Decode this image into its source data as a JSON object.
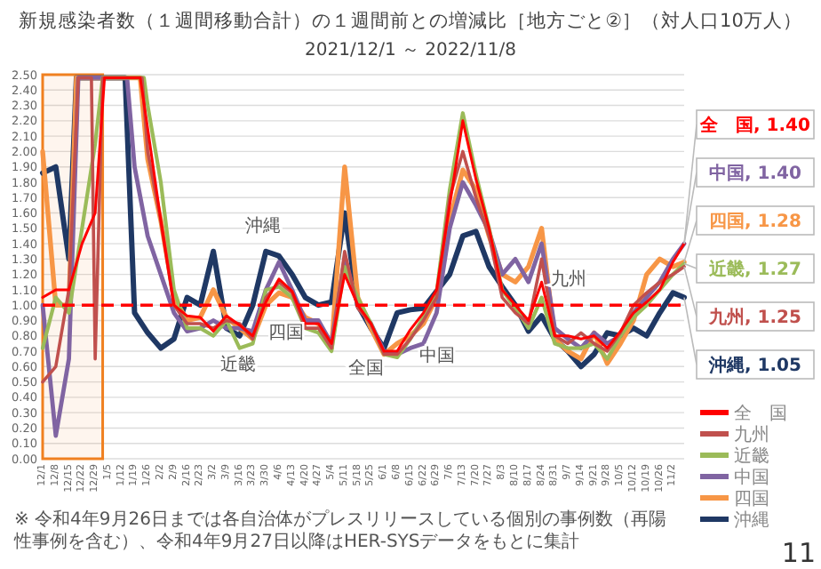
{
  "chart_data": {
    "type": "line",
    "title": "新規感染者数（１週間移動合計）の１週間前との増減比［地方ごと②］（対人口10万人）",
    "subtitle": "2021/12/1 ～ 2022/11/8",
    "xlim": [
      "2021-12-01",
      "2022-11-08"
    ],
    "ylim": [
      0,
      2.5
    ],
    "xticks": [
      {
        "value": "2021-12-01",
        "label": "12/1"
      },
      {
        "value": "2021-12-08",
        "label": "12/8"
      },
      {
        "value": "2021-12-15",
        "label": "12/15"
      },
      {
        "value": "2021-12-22",
        "label": "12/22"
      },
      {
        "value": "2021-12-29",
        "label": "12/29"
      },
      {
        "value": "2022-01-05",
        "label": "1/5"
      },
      {
        "value": "2022-01-12",
        "label": "1/12"
      },
      {
        "value": "2022-01-19",
        "label": "1/19"
      },
      {
        "value": "2022-01-26",
        "label": "1/26"
      },
      {
        "value": "2022-02-02",
        "label": "2/2"
      },
      {
        "value": "2022-02-09",
        "label": "2/9"
      },
      {
        "value": "2022-02-16",
        "label": "2/16"
      },
      {
        "value": "2022-02-23",
        "label": "2/23"
      },
      {
        "value": "2022-03-02",
        "label": "3/2"
      },
      {
        "value": "2022-03-09",
        "label": "3/9"
      },
      {
        "value": "2022-03-16",
        "label": "3/16"
      },
      {
        "value": "2022-03-23",
        "label": "3/23"
      },
      {
        "value": "2022-03-30",
        "label": "3/30"
      },
      {
        "value": "2022-04-06",
        "label": "4/6"
      },
      {
        "value": "2022-04-13",
        "label": "4/13"
      },
      {
        "value": "2022-04-20",
        "label": "4/20"
      },
      {
        "value": "2022-04-27",
        "label": "4/27"
      },
      {
        "value": "2022-05-04",
        "label": "5/4"
      },
      {
        "value": "2022-05-11",
        "label": "5/11"
      },
      {
        "value": "2022-05-18",
        "label": "5/18"
      },
      {
        "value": "2022-05-25",
        "label": "5/25"
      },
      {
        "value": "2022-06-01",
        "label": "6/1"
      },
      {
        "value": "2022-06-08",
        "label": "6/8"
      },
      {
        "value": "2022-06-15",
        "label": "6/15"
      },
      {
        "value": "2022-06-22",
        "label": "6/22"
      },
      {
        "value": "2022-06-29",
        "label": "6/29"
      },
      {
        "value": "2022-07-06",
        "label": "7/6"
      },
      {
        "value": "2022-07-13",
        "label": "7/13"
      },
      {
        "value": "2022-07-20",
        "label": "7/20"
      },
      {
        "value": "2022-07-27",
        "label": "7/27"
      },
      {
        "value": "2022-08-03",
        "label": "8/3"
      },
      {
        "value": "2022-08-10",
        "label": "8/10"
      },
      {
        "value": "2022-08-17",
        "label": "8/17"
      },
      {
        "value": "2022-08-24",
        "label": "8/24"
      },
      {
        "value": "2022-08-31",
        "label": "8/31"
      },
      {
        "value": "2022-09-07",
        "label": "9/7"
      },
      {
        "value": "2022-09-14",
        "label": "9/14"
      },
      {
        "value": "2022-09-21",
        "label": "9/21"
      },
      {
        "value": "2022-09-28",
        "label": "9/28"
      },
      {
        "value": "2022-10-05",
        "label": "10/5"
      },
      {
        "value": "2022-10-12",
        "label": "10/12"
      },
      {
        "value": "2022-10-19",
        "label": "10/19"
      },
      {
        "value": "2022-10-26",
        "label": "10/26"
      },
      {
        "value": "2022-11-02",
        "label": "11/2"
      }
    ],
    "yticks": [
      {
        "value": 0,
        "label": "0.00"
      },
      {
        "value": 0.1,
        "label": "0.10"
      },
      {
        "value": 0.2,
        "label": "0.20"
      },
      {
        "value": 0.3,
        "label": "0.30"
      },
      {
        "value": 0.4,
        "label": "0.40"
      },
      {
        "value": 0.5,
        "label": "0.50"
      },
      {
        "value": 0.6,
        "label": "0.60"
      },
      {
        "value": 0.7,
        "label": "0.70"
      },
      {
        "value": 0.8,
        "label": "0.80"
      },
      {
        "value": 0.9,
        "label": "0.90"
      },
      {
        "value": 1,
        "label": "1.00"
      },
      {
        "value": 1.1,
        "label": "1.10"
      },
      {
        "value": 1.2,
        "label": "1.20"
      },
      {
        "value": 1.3,
        "label": "1.30"
      },
      {
        "value": 1.4,
        "label": "1.40"
      },
      {
        "value": 1.5,
        "label": "1.50"
      },
      {
        "value": 1.6,
        "label": "1.60"
      },
      {
        "value": 1.7,
        "label": "1.70"
      },
      {
        "value": 1.8,
        "label": "1.80"
      },
      {
        "value": 1.9,
        "label": "1.90"
      },
      {
        "value": 2,
        "label": "2.00"
      },
      {
        "value": 2.1,
        "label": "2.10"
      },
      {
        "value": 2.2,
        "label": "2.20"
      },
      {
        "value": 2.3,
        "label": "2.30"
      },
      {
        "value": 2.4,
        "label": "2.40"
      },
      {
        "value": 2.5,
        "label": "2.50"
      }
    ],
    "grid": "y",
    "legend": "bottom right",
    "series": [
      {
        "name": "全　国",
        "color": "#ff0000",
        "x": [
          "2021-12-01",
          "2021-12-08",
          "2021-12-15",
          "2021-12-22",
          "2021-12-29",
          "2022-01-03",
          "2022-01-22",
          "2022-01-26",
          "2022-02-02",
          "2022-02-09",
          "2022-02-16",
          "2022-02-23",
          "2022-03-02",
          "2022-03-09",
          "2022-03-16",
          "2022-03-23",
          "2022-03-30",
          "2022-04-06",
          "2022-04-13",
          "2022-04-20",
          "2022-04-27",
          "2022-05-04",
          "2022-05-11",
          "2022-05-18",
          "2022-05-25",
          "2022-06-01",
          "2022-06-08",
          "2022-06-15",
          "2022-06-22",
          "2022-06-29",
          "2022-07-06",
          "2022-07-13",
          "2022-07-20",
          "2022-07-27",
          "2022-08-03",
          "2022-08-10",
          "2022-08-17",
          "2022-08-24",
          "2022-08-31",
          "2022-09-07",
          "2022-09-14",
          "2022-09-21",
          "2022-09-28",
          "2022-10-05",
          "2022-10-12",
          "2022-10-19",
          "2022-10-26",
          "2022-11-02",
          "2022-11-08"
        ],
        "values": [
          1.05,
          1.1,
          1.1,
          1.4,
          1.6,
          2.48,
          2.48,
          2.15,
          1.55,
          1.0,
          0.93,
          0.92,
          0.83,
          0.93,
          0.87,
          0.8,
          1.02,
          1.17,
          1.09,
          0.88,
          0.88,
          0.75,
          1.2,
          1.0,
          0.88,
          0.7,
          0.7,
          0.84,
          0.95,
          1.1,
          1.65,
          2.2,
          1.82,
          1.5,
          1.1,
          1.0,
          0.9,
          1.15,
          0.8,
          0.8,
          0.78,
          0.8,
          0.72,
          0.83,
          0.95,
          1.02,
          1.1,
          1.28,
          1.4
        ],
        "value_labels": [
          null,
          null,
          null,
          null,
          null,
          null,
          null,
          null,
          null,
          null,
          null,
          null,
          null,
          null,
          null,
          null,
          null,
          null,
          null,
          null,
          null,
          null,
          null,
          null,
          null,
          null,
          null,
          null,
          null,
          null,
          null,
          null,
          null,
          null,
          null,
          null,
          null,
          null,
          null,
          null,
          null,
          null,
          null,
          null,
          null,
          null,
          null,
          null,
          "全　国, 1.40"
        ]
      },
      {
        "name": "九州",
        "color": "#c0504d",
        "x": [
          "2021-12-01",
          "2021-12-08",
          "2021-12-15",
          "2021-12-20",
          "2021-12-27",
          "2021-12-29",
          "2022-01-02",
          "2022-01-23",
          "2022-01-26",
          "2022-02-02",
          "2022-02-09",
          "2022-02-16",
          "2022-02-23",
          "2022-03-02",
          "2022-03-09",
          "2022-03-16",
          "2022-03-23",
          "2022-03-30",
          "2022-04-06",
          "2022-04-13",
          "2022-04-20",
          "2022-04-27",
          "2022-05-04",
          "2022-05-11",
          "2022-05-18",
          "2022-05-25",
          "2022-06-01",
          "2022-06-08",
          "2022-06-15",
          "2022-06-22",
          "2022-06-29",
          "2022-07-06",
          "2022-07-13",
          "2022-07-20",
          "2022-07-27",
          "2022-08-03",
          "2022-08-10",
          "2022-08-17",
          "2022-08-24",
          "2022-08-31",
          "2022-09-07",
          "2022-09-14",
          "2022-09-21",
          "2022-09-28",
          "2022-10-05",
          "2022-10-12",
          "2022-10-19",
          "2022-10-26",
          "2022-11-02",
          "2022-11-08"
        ],
        "values": [
          0.5,
          0.6,
          1.1,
          2.48,
          2.48,
          0.65,
          2.48,
          2.48,
          2.0,
          1.55,
          1.0,
          0.88,
          0.88,
          0.85,
          0.9,
          0.88,
          0.78,
          1.05,
          1.15,
          1.08,
          0.85,
          0.85,
          0.72,
          1.35,
          0.98,
          0.88,
          0.68,
          0.68,
          0.78,
          0.9,
          1.05,
          1.7,
          2.0,
          1.7,
          1.45,
          1.05,
          0.95,
          0.88,
          1.3,
          0.8,
          0.75,
          0.82,
          0.75,
          0.7,
          0.82,
          1.0,
          1.08,
          1.15,
          1.2,
          1.25
        ],
        "value_labels": [
          null,
          null,
          null,
          null,
          null,
          null,
          null,
          null,
          null,
          null,
          null,
          null,
          null,
          null,
          null,
          null,
          null,
          null,
          null,
          null,
          null,
          null,
          null,
          null,
          null,
          null,
          null,
          null,
          null,
          null,
          null,
          null,
          null,
          null,
          null,
          null,
          null,
          null,
          null,
          null,
          null,
          null,
          null,
          null,
          null,
          null,
          null,
          null,
          null,
          "九州, 1.25"
        ]
      },
      {
        "name": "近畿",
        "color": "#9bbb59",
        "x": [
          "2021-12-01",
          "2021-12-08",
          "2021-12-15",
          "2021-12-22",
          "2021-12-29",
          "2022-01-02",
          "2022-01-24",
          "2022-01-26",
          "2022-02-02",
          "2022-02-09",
          "2022-02-16",
          "2022-02-23",
          "2022-03-02",
          "2022-03-09",
          "2022-03-16",
          "2022-03-23",
          "2022-03-30",
          "2022-04-06",
          "2022-04-13",
          "2022-04-20",
          "2022-04-27",
          "2022-05-04",
          "2022-05-11",
          "2022-05-18",
          "2022-05-25",
          "2022-06-01",
          "2022-06-08",
          "2022-06-15",
          "2022-06-22",
          "2022-06-29",
          "2022-07-06",
          "2022-07-13",
          "2022-07-20",
          "2022-07-27",
          "2022-08-03",
          "2022-08-10",
          "2022-08-17",
          "2022-08-24",
          "2022-08-31",
          "2022-09-07",
          "2022-09-14",
          "2022-09-21",
          "2022-09-28",
          "2022-10-05",
          "2022-10-12",
          "2022-10-19",
          "2022-10-26",
          "2022-11-02",
          "2022-11-08"
        ],
        "values": [
          0.72,
          1.05,
          0.95,
          1.5,
          2.05,
          2.48,
          2.48,
          2.3,
          1.8,
          1.1,
          0.85,
          0.85,
          0.8,
          0.9,
          0.72,
          0.75,
          1.1,
          1.12,
          1.05,
          0.85,
          0.82,
          0.7,
          1.25,
          1.05,
          0.88,
          0.68,
          0.66,
          0.78,
          0.92,
          1.08,
          1.75,
          2.25,
          1.85,
          1.5,
          1.1,
          0.98,
          0.85,
          1.05,
          0.75,
          0.72,
          0.72,
          0.75,
          0.65,
          0.8,
          0.92,
          1.0,
          1.1,
          1.2,
          1.27
        ],
        "value_labels": [
          null,
          null,
          null,
          null,
          null,
          null,
          null,
          null,
          null,
          null,
          null,
          null,
          null,
          null,
          null,
          null,
          null,
          null,
          null,
          null,
          null,
          null,
          null,
          null,
          null,
          null,
          null,
          null,
          null,
          null,
          null,
          null,
          null,
          null,
          null,
          null,
          null,
          null,
          null,
          null,
          null,
          null,
          null,
          null,
          null,
          null,
          null,
          null,
          "近畿, 1.27"
        ]
      },
      {
        "name": "中国",
        "color": "#8064a2",
        "x": [
          "2021-12-01",
          "2021-12-08",
          "2021-12-15",
          "2021-12-20",
          "2022-01-15",
          "2022-01-19",
          "2022-01-26",
          "2022-02-02",
          "2022-02-09",
          "2022-02-16",
          "2022-02-23",
          "2022-03-02",
          "2022-03-09",
          "2022-03-16",
          "2022-03-23",
          "2022-03-30",
          "2022-04-06",
          "2022-04-13",
          "2022-04-20",
          "2022-04-27",
          "2022-05-04",
          "2022-05-11",
          "2022-05-18",
          "2022-05-25",
          "2022-06-01",
          "2022-06-08",
          "2022-06-15",
          "2022-06-22",
          "2022-06-29",
          "2022-07-06",
          "2022-07-13",
          "2022-07-20",
          "2022-07-27",
          "2022-08-03",
          "2022-08-10",
          "2022-08-17",
          "2022-08-24",
          "2022-08-31",
          "2022-09-07",
          "2022-09-14",
          "2022-09-21",
          "2022-09-28",
          "2022-10-05",
          "2022-10-12",
          "2022-10-19",
          "2022-10-26",
          "2022-11-02",
          "2022-11-08"
        ],
        "values": [
          1.0,
          0.15,
          0.65,
          2.48,
          2.48,
          1.9,
          1.45,
          1.2,
          0.95,
          0.83,
          0.85,
          0.9,
          0.85,
          0.85,
          0.83,
          1.1,
          1.28,
          1.1,
          0.9,
          0.9,
          0.75,
          1.3,
          1.0,
          0.88,
          0.7,
          0.68,
          0.72,
          0.75,
          0.95,
          1.5,
          1.8,
          1.65,
          1.48,
          1.2,
          1.3,
          1.15,
          1.4,
          0.85,
          0.78,
          0.72,
          0.82,
          0.75,
          0.8,
          0.95,
          1.05,
          1.15,
          1.3,
          1.4
        ],
        "value_labels": [
          null,
          null,
          null,
          null,
          null,
          null,
          null,
          null,
          null,
          null,
          null,
          null,
          null,
          null,
          null,
          null,
          null,
          null,
          null,
          null,
          null,
          null,
          null,
          null,
          null,
          null,
          null,
          null,
          null,
          null,
          null,
          null,
          null,
          null,
          null,
          null,
          null,
          null,
          null,
          null,
          null,
          null,
          null,
          null,
          null,
          null,
          null,
          "中国, 1.40"
        ]
      },
      {
        "name": "四国",
        "color": "#f79646",
        "x": [
          "2021-12-01",
          "2021-12-08",
          "2021-12-15",
          "2021-12-19",
          "2022-01-22",
          "2022-01-26",
          "2022-02-02",
          "2022-02-09",
          "2022-02-16",
          "2022-02-23",
          "2022-03-02",
          "2022-03-09",
          "2022-03-16",
          "2022-03-23",
          "2022-03-30",
          "2022-04-06",
          "2022-04-13",
          "2022-04-20",
          "2022-04-27",
          "2022-05-04",
          "2022-05-11",
          "2022-05-18",
          "2022-05-25",
          "2022-06-01",
          "2022-06-08",
          "2022-06-15",
          "2022-06-22",
          "2022-06-29",
          "2022-07-06",
          "2022-07-13",
          "2022-07-20",
          "2022-07-27",
          "2022-08-03",
          "2022-08-10",
          "2022-08-17",
          "2022-08-24",
          "2022-08-31",
          "2022-09-07",
          "2022-09-14",
          "2022-09-21",
          "2022-09-28",
          "2022-10-05",
          "2022-10-12",
          "2022-10-19",
          "2022-10-26",
          "2022-11-02",
          "2022-11-08"
        ],
        "values": [
          2.0,
          1.0,
          1.0,
          2.48,
          2.48,
          1.95,
          1.55,
          1.05,
          0.9,
          0.92,
          1.1,
          0.92,
          0.85,
          0.78,
          1.0,
          1.08,
          1.05,
          0.92,
          0.88,
          0.72,
          1.9,
          1.05,
          0.85,
          0.68,
          0.75,
          0.8,
          0.88,
          1.05,
          1.55,
          1.88,
          1.75,
          1.45,
          1.2,
          1.15,
          1.25,
          1.5,
          0.78,
          0.7,
          0.65,
          0.82,
          0.62,
          0.75,
          0.9,
          1.2,
          1.3,
          1.25,
          1.28
        ],
        "value_labels": [
          null,
          null,
          null,
          null,
          null,
          null,
          null,
          null,
          null,
          null,
          null,
          null,
          null,
          null,
          null,
          null,
          null,
          null,
          null,
          null,
          null,
          null,
          null,
          null,
          null,
          null,
          null,
          null,
          null,
          null,
          null,
          null,
          null,
          null,
          null,
          null,
          null,
          null,
          null,
          null,
          null,
          null,
          null,
          null,
          null,
          null,
          "四国, 1.28"
        ]
      },
      {
        "name": "沖縄",
        "color": "#1f3864",
        "x": [
          "2021-12-01",
          "2021-12-08",
          "2021-12-15",
          "2021-12-19",
          "2022-01-14",
          "2022-01-19",
          "2022-01-26",
          "2022-02-02",
          "2022-02-09",
          "2022-02-16",
          "2022-02-23",
          "2022-03-02",
          "2022-03-09",
          "2022-03-16",
          "2022-03-23",
          "2022-03-30",
          "2022-04-06",
          "2022-04-13",
          "2022-04-20",
          "2022-04-27",
          "2022-05-04",
          "2022-05-11",
          "2022-05-18",
          "2022-05-25",
          "2022-06-01",
          "2022-06-08",
          "2022-06-15",
          "2022-06-22",
          "2022-06-29",
          "2022-07-06",
          "2022-07-13",
          "2022-07-20",
          "2022-07-27",
          "2022-08-03",
          "2022-08-10",
          "2022-08-17",
          "2022-08-24",
          "2022-08-31",
          "2022-09-07",
          "2022-09-14",
          "2022-09-21",
          "2022-09-28",
          "2022-10-05",
          "2022-10-12",
          "2022-10-19",
          "2022-10-26",
          "2022-11-02",
          "2022-11-08"
        ],
        "values": [
          1.86,
          1.9,
          1.3,
          2.48,
          2.48,
          0.95,
          0.82,
          0.72,
          0.78,
          1.05,
          1.0,
          1.35,
          0.85,
          0.8,
          1.0,
          1.35,
          1.32,
          1.2,
          1.05,
          1.0,
          1.02,
          1.6,
          1.0,
          0.85,
          0.72,
          0.95,
          0.97,
          0.98,
          1.09,
          1.2,
          1.45,
          1.48,
          1.25,
          1.12,
          1.0,
          0.83,
          0.93,
          0.78,
          0.7,
          0.6,
          0.68,
          0.82,
          0.8,
          0.85,
          0.8,
          0.95,
          1.08,
          1.05
        ],
        "value_labels": [
          null,
          null,
          null,
          null,
          null,
          null,
          null,
          null,
          null,
          null,
          null,
          null,
          null,
          null,
          null,
          null,
          null,
          null,
          null,
          null,
          null,
          null,
          null,
          null,
          null,
          null,
          null,
          null,
          null,
          null,
          null,
          null,
          null,
          null,
          null,
          null,
          null,
          null,
          null,
          null,
          null,
          null,
          null,
          null,
          null,
          null,
          null,
          "沖縄, 1.05"
        ]
      }
    ],
    "ref_lines": [
      {
        "axis": "y",
        "value": 1,
        "color": "#ff0000",
        "line_style": "dashed"
      }
    ],
    "bands": [
      {
        "axis": "x",
        "from": "2021-12-01",
        "to": "2022-01-02",
        "color": "#f08020"
      }
    ],
    "annotations": [
      "沖縄",
      "四国",
      "近畿",
      "全国",
      "中国",
      "九州",
      "※ 令和4年9月26日までは各自治体がプレスリリースしている個別の事例数（再陽性事例を含む）、令和4年9月27日以降はHER-SYSデータをもとに集計",
      "11"
    ]
  }
}
